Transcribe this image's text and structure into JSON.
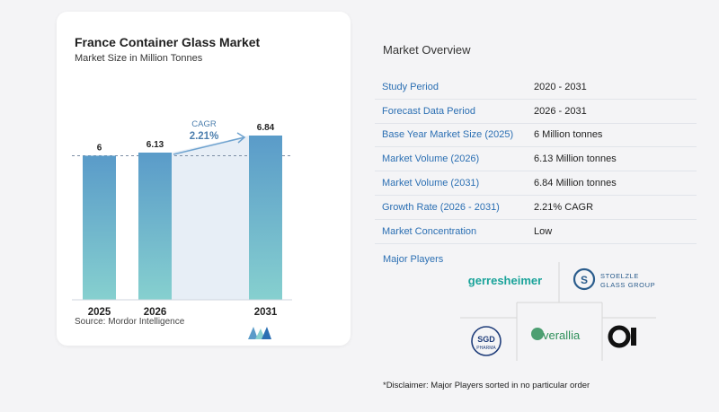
{
  "chart_data": {
    "type": "bar",
    "title": "France Container Glass Market",
    "subtitle": "Market Size in Million Tonnes",
    "categories": [
      "2025",
      "2026",
      "2031"
    ],
    "values": [
      6,
      6.13,
      6.84
    ],
    "value_labels": [
      "6",
      "6.13",
      "6.84"
    ],
    "ylim": [
      0,
      6.84
    ],
    "annotation": {
      "label": "CAGR",
      "value": "2.21%"
    },
    "colors": {
      "bar_top": "#5a9bc9",
      "bar_bottom": "#86d0cf",
      "arrow": "#6fa3cf",
      "shade": "#e7eef6"
    },
    "grid": false
  },
  "source": {
    "label": "Source:",
    "name": "Mordor Intelligence"
  },
  "overview": {
    "title": "Market Overview",
    "rows": [
      {
        "label": "Study Period",
        "value": "2020 - 2031"
      },
      {
        "label": "Forecast Data Period",
        "value": "2026 - 2031"
      },
      {
        "label": "Base Year Market Size (2025)",
        "value": "6 Million tonnes"
      },
      {
        "label": "Market Volume (2026)",
        "value": "6.13 Million tonnes"
      },
      {
        "label": "Market Volume (2031)",
        "value": "6.84 Million tonnes"
      },
      {
        "label": "Growth Rate (2026 - 2031)",
        "value": "2.21% CAGR"
      },
      {
        "label": "Market Concentration",
        "value": "Low"
      }
    ]
  },
  "players": {
    "title": "Major Players",
    "logos": [
      {
        "name": "gerresheimer",
        "text": "gerresheimer",
        "color": "#1aa39a"
      },
      {
        "name": "stoelzle",
        "text_top": "STOELZLE",
        "text_bottom": "GLASS GROUP",
        "color": "#2a5c8c"
      },
      {
        "name": "sgd-pharma",
        "text_top": "SGD",
        "text_bottom": "PHARMA",
        "color": "#1f3d7a"
      },
      {
        "name": "verallia",
        "text": "verallia",
        "color": "#2f8f5a"
      },
      {
        "name": "o-i",
        "text": "O-I",
        "color": "#111111"
      }
    ]
  },
  "disclaimer": "*Disclaimer: Major Players sorted in no particular order"
}
